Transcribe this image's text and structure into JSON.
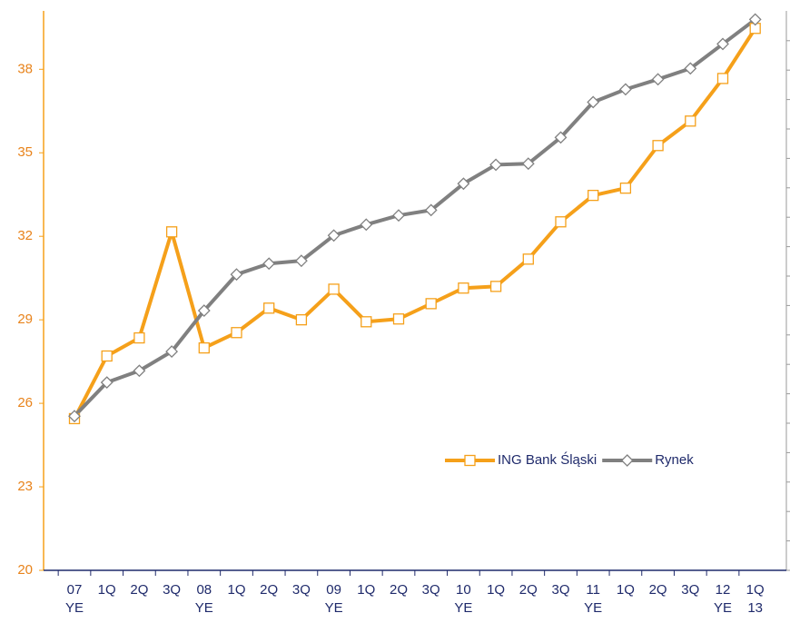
{
  "chart_data": {
    "type": "line",
    "categories": [
      "07\nYE",
      "1Q",
      "2Q",
      "3Q",
      "08\nYE",
      "1Q",
      "2Q",
      "3Q",
      "09\nYE",
      "1Q",
      "2Q",
      "3Q",
      "10\nYE",
      "1Q",
      "2Q",
      "3Q",
      "11\nYE",
      "1Q",
      "2Q",
      "3Q",
      "12\nYE",
      "1Q\n13"
    ],
    "series": [
      {
        "name": "ING Bank Śląski",
        "color": "#f5a01a",
        "marker": "square",
        "values": [
          25.45,
          27.7,
          28.35,
          32.16,
          27.99,
          28.54,
          29.42,
          29.0,
          30.1,
          28.93,
          29.03,
          29.58,
          30.14,
          30.2,
          31.18,
          32.52,
          33.47,
          33.73,
          35.26,
          36.14,
          37.67,
          39.47
        ]
      },
      {
        "name": "Rynek",
        "color": "#808080",
        "marker": "diamond",
        "values": [
          25.54,
          26.75,
          27.17,
          27.86,
          29.33,
          30.63,
          31.02,
          31.12,
          32.03,
          32.42,
          32.75,
          32.94,
          33.89,
          34.57,
          34.61,
          35.55,
          36.82,
          37.28,
          37.64,
          38.03,
          38.91,
          39.79
        ]
      }
    ],
    "ylim": [
      20,
      40
    ],
    "yticks": [
      20,
      23,
      26,
      29,
      32,
      35,
      38
    ],
    "legend": "right"
  }
}
